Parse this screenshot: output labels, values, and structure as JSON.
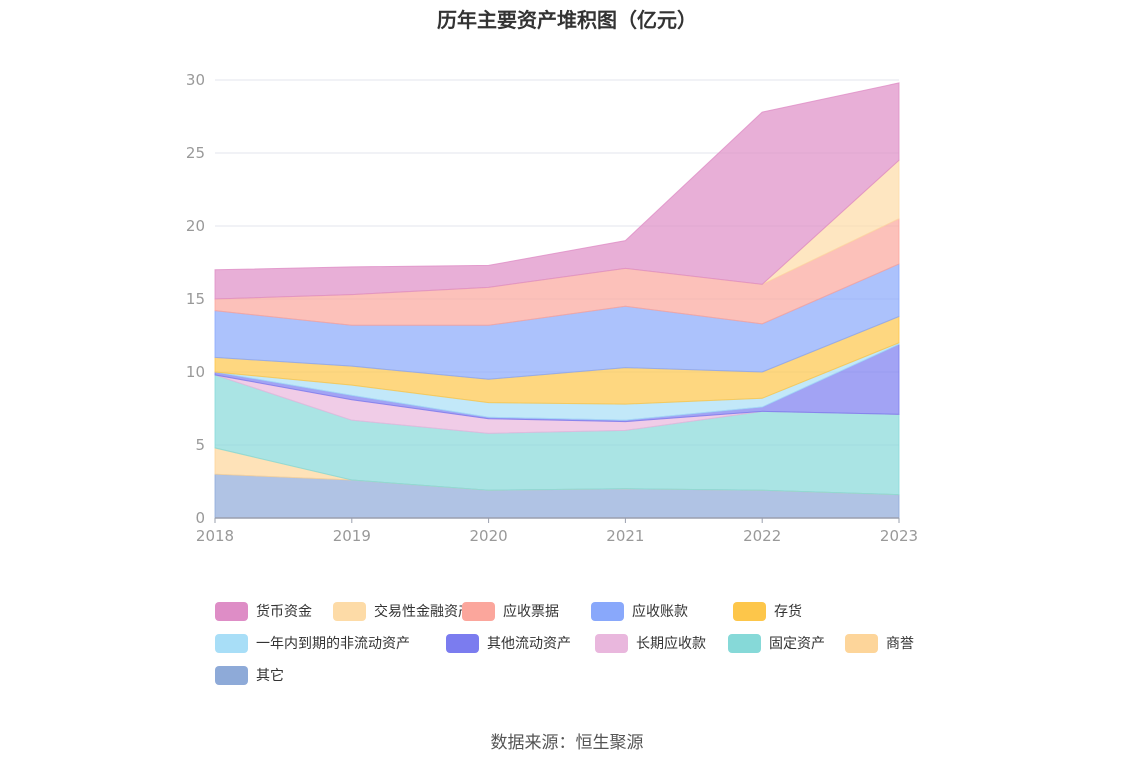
{
  "chart_data": {
    "type": "area",
    "stacked": true,
    "title": "历年主要资产堆积图（亿元）",
    "x": [
      "2018",
      "2019",
      "2020",
      "2021",
      "2022",
      "2023"
    ],
    "ylim": [
      0,
      30
    ],
    "yticks": [
      0,
      5,
      10,
      15,
      20,
      25,
      30
    ],
    "grid": true,
    "legend_position": "bottom",
    "series": [
      {
        "name": "其它",
        "color": "#8eaad8",
        "values": [
          3.0,
          2.6,
          1.9,
          2.0,
          1.9,
          1.6
        ]
      },
      {
        "name": "商誉",
        "color": "#fdd59a",
        "values": [
          1.8,
          0.0,
          0.0,
          0.0,
          0.0,
          0.0
        ]
      },
      {
        "name": "固定资产",
        "color": "#86d9d8",
        "values": [
          5.0,
          4.1,
          3.9,
          4.0,
          5.4,
          5.5
        ]
      },
      {
        "name": "长期应收款",
        "color": "#e9b7dd",
        "values": [
          0.0,
          1.4,
          1.0,
          0.6,
          0.0,
          0.0
        ]
      },
      {
        "name": "其他流动资产",
        "color": "#7b7cef",
        "values": [
          0.2,
          0.3,
          0.1,
          0.1,
          0.3,
          4.8
        ]
      },
      {
        "name": "一年内到期的非流动资产",
        "color": "#a8def7",
        "values": [
          0.0,
          0.7,
          1.0,
          1.1,
          0.6,
          0.1
        ]
      },
      {
        "name": "存货",
        "color": "#fdc64a",
        "values": [
          1.0,
          1.3,
          1.6,
          2.5,
          1.8,
          1.8
        ]
      },
      {
        "name": "应收账款",
        "color": "#89a8fb",
        "values": [
          3.2,
          2.8,
          3.7,
          4.2,
          3.3,
          3.6
        ]
      },
      {
        "name": "应收票据",
        "color": "#fba69c",
        "values": [
          0.8,
          2.1,
          2.6,
          2.6,
          2.7,
          3.1
        ]
      },
      {
        "name": "交易性金融资产",
        "color": "#fddba7",
        "values": [
          0.0,
          0.0,
          0.0,
          0.0,
          0.0,
          4.0
        ]
      },
      {
        "name": "货币资金",
        "color": "#de8dc6",
        "values": [
          2.0,
          1.9,
          1.5,
          1.9,
          11.8,
          5.3
        ]
      }
    ],
    "legend_order": [
      "货币资金",
      "交易性金融资产",
      "应收票据",
      "应收账款",
      "存货",
      "一年内到期的非流动资产",
      "其他流动资产",
      "长期应收款",
      "固定资产",
      "商誉",
      "其它"
    ]
  },
  "source_text": "数据来源：恒生聚源"
}
